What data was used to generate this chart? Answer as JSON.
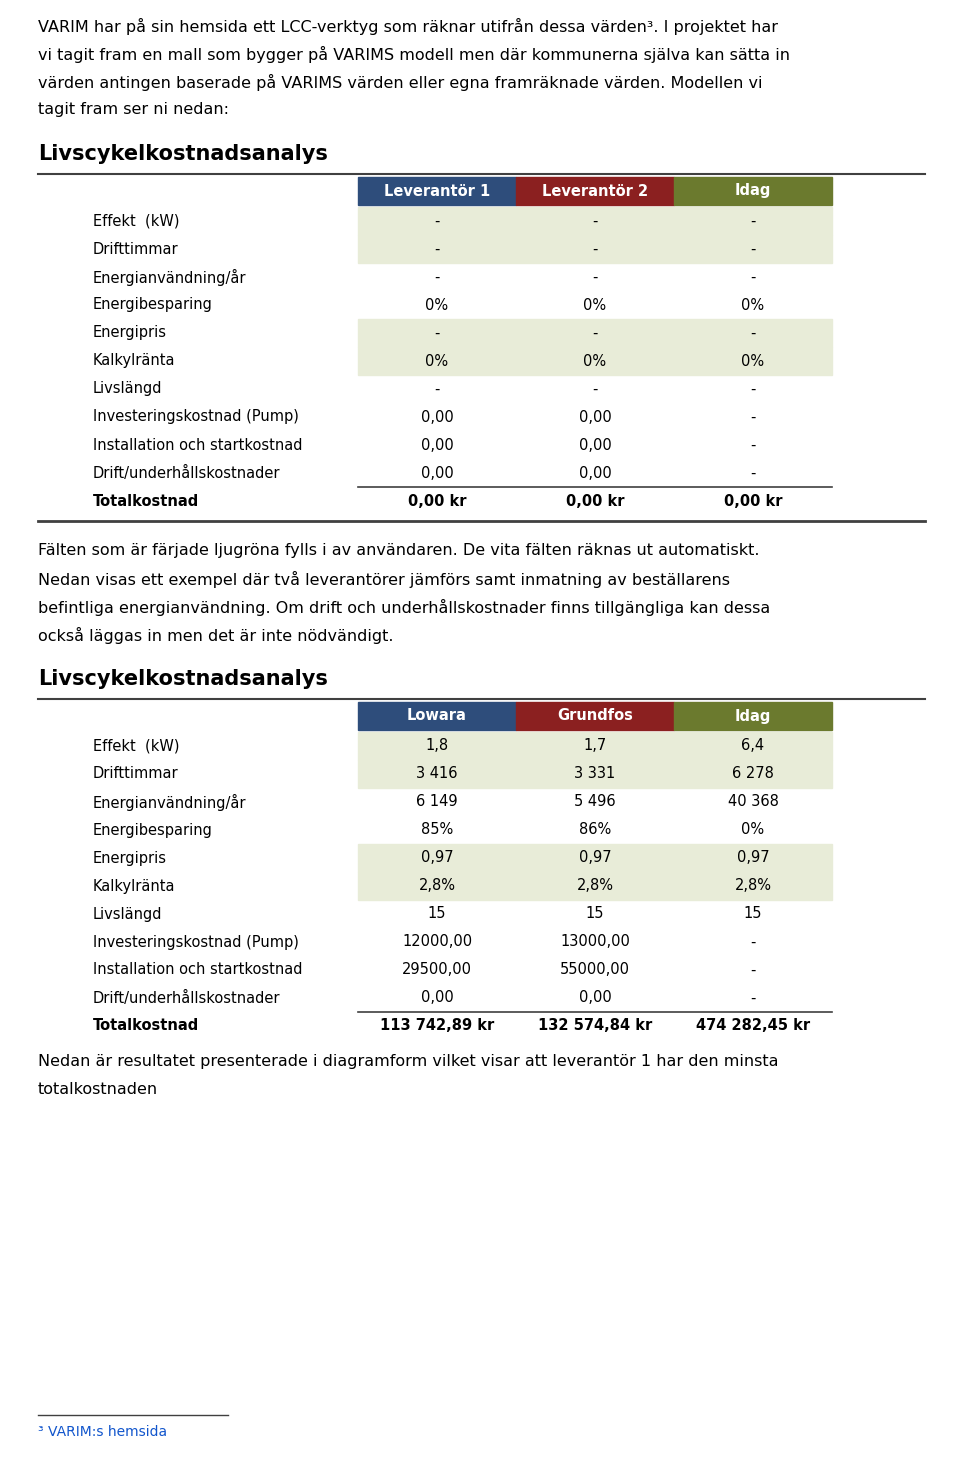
{
  "intro_lines": [
    "VARIM har på sin hemsida ett LCC-verktyg som räknar utifrån dessa värden³. I projektet har",
    "vi tagit fram en mall som bygger på VARIMS modell men där kommunerna själva kan sätta in",
    "värden antingen baserade på VARIMS värden eller egna framräknade värden. Modellen vi",
    "tagit fram ser ni nedan:"
  ],
  "section1_title": "Livscykelkostnadsanalys",
  "table1_headers": [
    "Leverantör 1",
    "Leverantör 2",
    "Idag"
  ],
  "table1_header_colors": [
    "#2E4D7B",
    "#8B2020",
    "#6B7A2E"
  ],
  "table1_rows": [
    [
      "Effekt  (kW)",
      "-",
      "-",
      "-"
    ],
    [
      "Drifttimmar",
      "-",
      "-",
      "-"
    ],
    [
      "Energianvändning/år",
      "-",
      "-",
      "-"
    ],
    [
      "Energibesparing",
      "0%",
      "0%",
      "0%"
    ],
    [
      "Energipris",
      "-",
      "-",
      "-"
    ],
    [
      "Kalkylränta",
      "0%",
      "0%",
      "0%"
    ],
    [
      "Livslängd",
      "-",
      "-",
      "-"
    ],
    [
      "Investeringskostnad (Pump)",
      "0,00",
      "0,00",
      "-"
    ],
    [
      "Installation och startkostnad",
      "0,00",
      "0,00",
      "-"
    ],
    [
      "Drift/underhållskostnader",
      "0,00",
      "0,00",
      "-"
    ],
    [
      "Totalkostnad",
      "0,00 kr",
      "0,00 kr",
      "0,00 kr"
    ]
  ],
  "table1_row_shading": [
    true,
    true,
    false,
    false,
    true,
    true,
    false,
    false,
    false,
    false,
    false
  ],
  "middle_lines": [
    "Fälten som är färjade ljugröna fylls i av användaren. De vita fälten räknas ut automatiskt.",
    "Nedan visas ett exempel där två leverantörer jämförs samt inmatning av beställarens",
    "befintliga energianvändning. Om drift och underhållskostnader finns tillgängliga kan dessa",
    "också läggas in men det är inte nödvändigt."
  ],
  "section2_title": "Livscykelkostnadsanalys",
  "table2_headers": [
    "Lowara",
    "Grundfos",
    "Idag"
  ],
  "table2_header_colors": [
    "#2E4D7B",
    "#8B2020",
    "#6B7A2E"
  ],
  "table2_rows": [
    [
      "Effekt  (kW)",
      "1,8",
      "1,7",
      "6,4"
    ],
    [
      "Drifttimmar",
      "3 416",
      "3 331",
      "6 278"
    ],
    [
      "Energianvändning/år",
      "6 149",
      "5 496",
      "40 368"
    ],
    [
      "Energibesparing",
      "85%",
      "86%",
      "0%"
    ],
    [
      "Energipris",
      "0,97",
      "0,97",
      "0,97"
    ],
    [
      "Kalkylränta",
      "2,8%",
      "2,8%",
      "2,8%"
    ],
    [
      "Livslängd",
      "15",
      "15",
      "15"
    ],
    [
      "Investeringskostnad (Pump)",
      "12000,00",
      "13000,00",
      "-"
    ],
    [
      "Installation och startkostnad",
      "29500,00",
      "55000,00",
      "-"
    ],
    [
      "Drift/underhållskostnader",
      "0,00",
      "0,00",
      "-"
    ],
    [
      "Totalkostnad",
      "113 742,89 kr",
      "132 574,84 kr",
      "474 282,45 kr"
    ]
  ],
  "table2_row_shading": [
    true,
    true,
    false,
    false,
    true,
    true,
    false,
    false,
    false,
    false,
    false
  ],
  "bottom_lines": [
    "Nedan är resultatet presenterade i diagramform vilket visar att leverantör 1 har den minsta",
    "totalkostnaden"
  ],
  "footnote": "³ VARIM:s hemsida",
  "bg_color": "#FFFFFF",
  "text_color": "#000000",
  "shading_color": "#E8ECD8",
  "font_family": "DejaVu Sans"
}
